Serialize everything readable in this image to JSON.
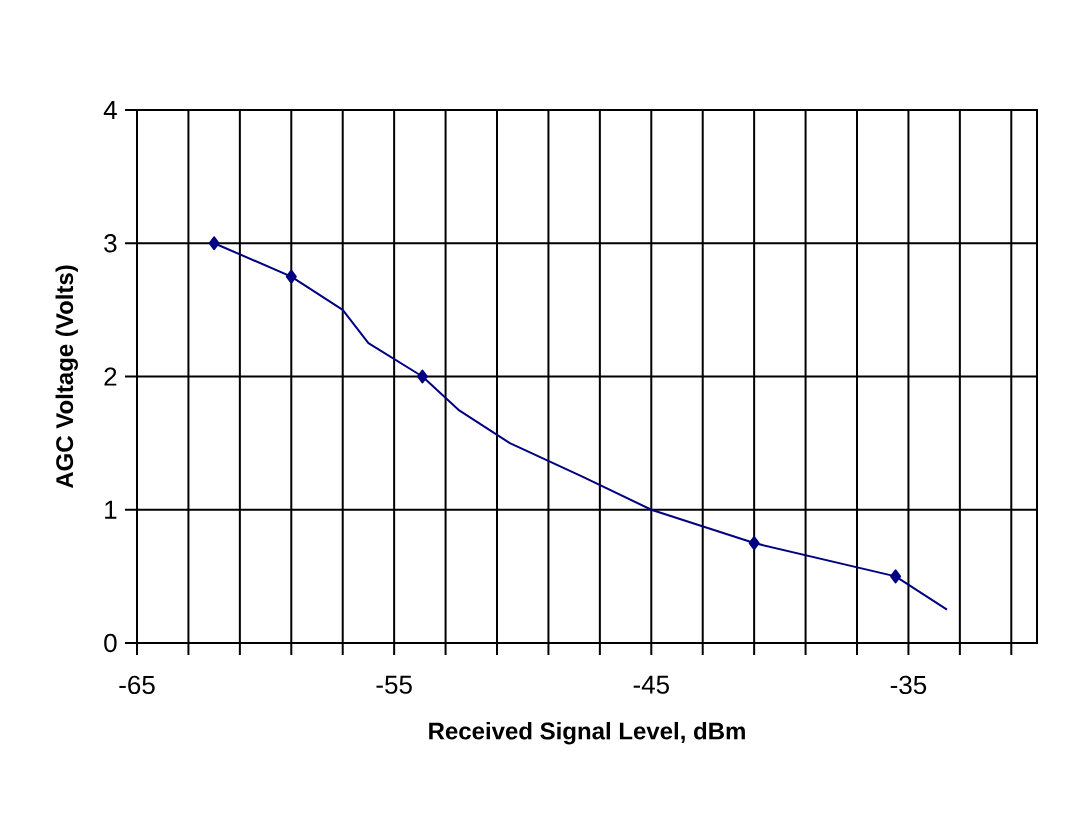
{
  "chart_data": {
    "type": "line",
    "xlabel": "Received Signal Level, dBm",
    "ylabel": "AGC Voltage (Volts)",
    "xlim": [
      -65,
      -30
    ],
    "ylim": [
      0,
      4
    ],
    "xticks": [
      -65,
      {
        "value": -63,
        "label": null
      },
      {
        "value": -61,
        "label": null
      },
      {
        "value": -59,
        "label": null
      },
      {
        "value": -57,
        "label": null
      },
      -55,
      {
        "value": -53,
        "label": null
      },
      {
        "value": -51,
        "label": null
      },
      {
        "value": -49,
        "label": null
      },
      {
        "value": -47,
        "label": null
      },
      -45,
      {
        "value": -43,
        "label": null
      },
      {
        "value": -41,
        "label": null
      },
      {
        "value": -39,
        "label": null
      },
      {
        "value": -37,
        "label": null
      },
      -35,
      {
        "value": -33,
        "label": null
      },
      {
        "value": -31,
        "label": null
      }
    ],
    "yticks": [
      0,
      1,
      2,
      3,
      4
    ],
    "grid": true,
    "series": [
      {
        "color": "#000080",
        "marker": "none",
        "line_style": "solid",
        "x": [
          -62,
          -59,
          -57,
          -56,
          -53.9,
          -52.5,
          -50.5,
          -47.7,
          -45,
          -41,
          -35.5,
          -33.5
        ],
        "values": [
          3,
          2.75,
          2.5,
          2.25,
          2,
          1.75,
          1.5,
          1.25,
          1,
          0.75,
          0.5,
          0.25
        ]
      },
      {
        "type": "scatter",
        "color": "#000080",
        "marker": "diamond",
        "x": [
          -62,
          -59,
          -53.9,
          -41,
          -35.5
        ],
        "values": [
          3,
          2.75,
          2,
          0.75,
          0.5
        ]
      }
    ]
  }
}
